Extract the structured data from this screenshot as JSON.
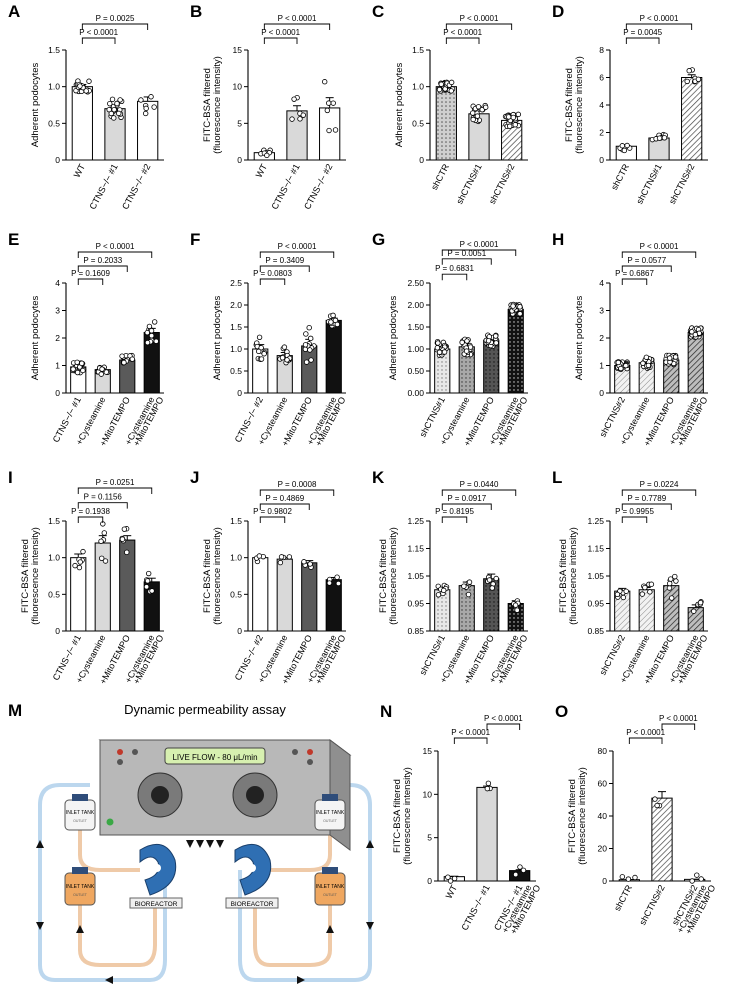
{
  "figure": {
    "panel_m": {
      "letter": "M",
      "title": "Dynamic permeability assay",
      "device_label": "LIVE FLOW - 80 μL/min",
      "tank_labels": [
        "INLET TANK",
        "INLET TANK",
        "INLET TANK",
        "INLET TANK"
      ],
      "tank_sublabels": [
        "OUTLET",
        "OUTLET",
        "OUTLET",
        "OUTLET"
      ],
      "bioreactor_labels": [
        "BIOREACTOR",
        "BIOREACTOR"
      ],
      "colors": {
        "device": "#b8b8b8",
        "device_dark": "#7a7a7a",
        "tube_outer": "#bcd7ee",
        "tube_inner": "#efcaa8",
        "bioreactor": "#2f6fb3",
        "screen": "#d7f0b0"
      }
    }
  },
  "chart_data": [
    {
      "letter": "A",
      "type": "bar",
      "ylabel": [
        "Adherent podocytes"
      ],
      "ylim": [
        0,
        1.5
      ],
      "yticks": [
        0,
        0.5,
        1.0,
        1.5
      ],
      "ytick_labels": [
        "0",
        "0.5",
        "1.0",
        "1.5"
      ],
      "categories": [
        "WT",
        "CTNS−/− #1",
        "CTNS−/− #2"
      ],
      "values": [
        1.0,
        0.7,
        0.8
      ],
      "errors": [
        0.03,
        0.05,
        0.06
      ],
      "patterns": [
        "white",
        "lightgray",
        "white"
      ],
      "n_points": [
        20,
        20,
        6
      ],
      "annotations": [
        {
          "text": "P < 0.0001",
          "from": 0,
          "to": 1,
          "y": 1.25
        },
        {
          "text": "P = 0.0025",
          "from": 0,
          "to": 2,
          "y": 1.42
        }
      ]
    },
    {
      "letter": "B",
      "type": "bar",
      "ylabel": [
        "FITC-BSA filtered",
        "(fluorescence intensity)"
      ],
      "ylim": [
        0,
        15
      ],
      "yticks": [
        0,
        5,
        10,
        15
      ],
      "ytick_labels": [
        "0",
        "5",
        "10",
        "15"
      ],
      "categories": [
        "WT",
        "CTNS−/− #1",
        "CTNS−/− #2"
      ],
      "values": [
        1.0,
        6.7,
        7.1
      ],
      "errors": [
        0.1,
        0.7,
        1.4
      ],
      "patterns": [
        "white",
        "lightgray",
        "white"
      ],
      "n_points": [
        8,
        6,
        6
      ],
      "annotations": [
        {
          "text": "P < 0.0001",
          "from": 0,
          "to": 1,
          "y": 11.5
        },
        {
          "text": "P < 0.0001",
          "from": 0,
          "to": 2,
          "y": 14.2
        }
      ]
    },
    {
      "letter": "C",
      "type": "bar",
      "ylabel": [
        "Adherent podocytes"
      ],
      "ylim": [
        0,
        1.5
      ],
      "yticks": [
        0,
        0.5,
        1.0,
        1.5
      ],
      "ytick_labels": [
        "0",
        "0.5",
        "1.0",
        "1.5"
      ],
      "categories": [
        "shCTR",
        "shCTNS#1",
        "shCTNS#2"
      ],
      "values": [
        1.0,
        0.63,
        0.54
      ],
      "errors": [
        0.02,
        0.04,
        0.03
      ],
      "patterns": [
        "dots",
        "lightgray",
        "hatch"
      ],
      "n_points": [
        30,
        20,
        25
      ],
      "annotations": [
        {
          "text": "P < 0.0001",
          "from": 0,
          "to": 1,
          "y": 1.25
        },
        {
          "text": "P < 0.0001",
          "from": 0,
          "to": 2,
          "y": 1.42
        }
      ]
    },
    {
      "letter": "D",
      "type": "bar",
      "ylabel": [
        "FITC-BSA filtered",
        "(fluorescence intensity)"
      ],
      "ylim": [
        0,
        8
      ],
      "yticks": [
        0,
        2,
        4,
        6,
        8
      ],
      "ytick_labels": [
        "0",
        "2",
        "4",
        "6",
        "8"
      ],
      "categories": [
        "shCTR",
        "shCTNS#1",
        "shCTNS#2"
      ],
      "values": [
        1.0,
        1.6,
        6.0
      ],
      "errors": [
        0.05,
        0.1,
        0.2
      ],
      "patterns": [
        "white",
        "lightgray",
        "hatch"
      ],
      "n_points": [
        8,
        10,
        7
      ],
      "annotations": [
        {
          "text": "P = 0.0045",
          "from": 0,
          "to": 1,
          "y": 6.9
        },
        {
          "text": "P < 0.0001",
          "from": 0,
          "to": 2,
          "y": 7.8
        }
      ]
    },
    {
      "letter": "E",
      "type": "bar",
      "ylabel": [
        "Adherent podocytes"
      ],
      "ylim": [
        0,
        4
      ],
      "yticks": [
        0,
        1,
        2,
        3,
        4
      ],
      "ytick_labels": [
        "0",
        "1",
        "2",
        "3",
        "4"
      ],
      "categories": [
        "CTNS−/− #1",
        "+Cysteamine",
        "+MitoTEMPO",
        "+Cysteamine +MitoTEMPO"
      ],
      "values": [
        0.95,
        0.85,
        1.2,
        2.2
      ],
      "errors": [
        0.08,
        0.07,
        0.06,
        0.15
      ],
      "patterns": [
        "white",
        "lightgray",
        "darkgray",
        "black"
      ],
      "n_points": [
        22,
        12,
        14,
        12
      ],
      "annotations": [
        {
          "text": "P = 0.1609",
          "from": 0,
          "to": 1,
          "y": 2.8
        },
        {
          "text": "P = 0.2033",
          "from": 0,
          "to": 2,
          "y": 3.4
        },
        {
          "text": "P < 0.0001",
          "from": 0,
          "to": 3,
          "y": 4.0
        }
      ]
    },
    {
      "letter": "F",
      "type": "bar",
      "ylabel": [
        "Adherent podocytes"
      ],
      "ylim": [
        0,
        2.5
      ],
      "yticks": [
        0,
        0.5,
        1.0,
        1.5,
        2.0,
        2.5
      ],
      "ytick_labels": [
        "0",
        "0.5",
        "1.0",
        "1.5",
        "2.0",
        "2.5"
      ],
      "categories": [
        "CTNS−/− #2",
        "+Cysteamine",
        "+MitoTEMPO",
        "+Cysteamine +MitoTEMPO"
      ],
      "values": [
        1.0,
        0.85,
        1.07,
        1.65
      ],
      "errors": [
        0.1,
        0.07,
        0.15,
        0.05
      ],
      "patterns": [
        "white",
        "lightgray",
        "darkgray",
        "black"
      ],
      "n_points": [
        12,
        12,
        12,
        14
      ],
      "annotations": [
        {
          "text": "P = 0.0803",
          "from": 0,
          "to": 1,
          "y": 1.8
        },
        {
          "text": "P = 0.3409",
          "from": 0,
          "to": 2,
          "y": 2.15
        },
        {
          "text": "P < 0.0001",
          "from": 0,
          "to": 3,
          "y": 2.5
        }
      ]
    },
    {
      "letter": "G",
      "type": "bar",
      "ylabel": [
        "Adherent podocytes"
      ],
      "ylim": [
        0,
        2.5
      ],
      "yticks": [
        0,
        0.5,
        1.0,
        1.5,
        2.0,
        2.5
      ],
      "ytick_labels": [
        "0.00",
        "0.50",
        "1.00",
        "1.50",
        "2.00",
        "2.50"
      ],
      "categories": [
        "shCTNS#1",
        "+Cysteamine",
        "+MitoTEMPO",
        "+Cysteamine +MitoTEMPO"
      ],
      "values": [
        1.0,
        1.05,
        1.2,
        1.9
      ],
      "errors": [
        0.06,
        0.07,
        0.05,
        0.04
      ],
      "patterns": [
        "lightdots",
        "graydots",
        "darkdots",
        "blackdots"
      ],
      "n_points": [
        25,
        20,
        22,
        40
      ],
      "annotations": [
        {
          "text": "P = 0.6831",
          "from": 0,
          "to": 1,
          "y": 2.7
        },
        {
          "text": "P = 0.0051",
          "from": 0,
          "to": 2,
          "y": 3.05
        },
        {
          "text": "P < 0.0001",
          "from": 0,
          "to": 3,
          "y": 3.4
        }
      ]
    },
    {
      "letter": "H",
      "type": "bar",
      "ylabel": [
        "Adherent podocytes"
      ],
      "ylim": [
        0,
        4
      ],
      "yticks": [
        0,
        1,
        2,
        3,
        4
      ],
      "ytick_labels": [
        "0",
        "1",
        "2",
        "3",
        "4"
      ],
      "categories": [
        "shCTNS#2",
        "+Cysteamine",
        "+MitoTEMPO",
        "+Cysteamine +MitoTEMPO"
      ],
      "values": [
        1.0,
        1.1,
        1.2,
        2.2
      ],
      "errors": [
        0.05,
        0.08,
        0.06,
        0.06
      ],
      "patterns": [
        "hatchlight",
        "hatchlight",
        "hatchdark",
        "hatchdark"
      ],
      "n_points": [
        22,
        20,
        22,
        40
      ],
      "annotations": [
        {
          "text": "P = 0.6867",
          "from": 0,
          "to": 1,
          "y": 2.9
        },
        {
          "text": "P = 0.0577",
          "from": 0,
          "to": 2,
          "y": 3.45
        },
        {
          "text": "P < 0.0001",
          "from": 0,
          "to": 3,
          "y": 4.0
        }
      ]
    },
    {
      "letter": "I",
      "type": "bar",
      "ylabel": [
        "FITC-BSA filtered",
        "(fluorescence intensity)"
      ],
      "ylim": [
        0,
        1.5
      ],
      "yticks": [
        0,
        0.5,
        1.0,
        1.5
      ],
      "ytick_labels": [
        "0",
        "0.5",
        "1.0",
        "1.5"
      ],
      "categories": [
        "CTNS−/− #1",
        "+Cysteamine",
        "+MitoTEMPO",
        "+Cysteamine +MitoTEMPO"
      ],
      "values": [
        1.0,
        1.2,
        1.24,
        0.67
      ],
      "errors": [
        0.05,
        0.1,
        0.06,
        0.05
      ],
      "patterns": [
        "white",
        "lightgray",
        "darkgray",
        "black"
      ],
      "n_points": [
        6,
        6,
        6,
        6
      ],
      "annotations": [
        {
          "text": "P = 0.1938",
          "from": 0,
          "to": 1,
          "y": 1.5
        },
        {
          "text": "P = 0.1156",
          "from": 0,
          "to": 2,
          "y": 1.75
        },
        {
          "text": "P = 0.0251",
          "from": 0,
          "to": 3,
          "y": 2.0
        }
      ]
    },
    {
      "letter": "J",
      "type": "bar",
      "ylabel": [
        "FITC-BSA filtered",
        "(fluorescence intensity)"
      ],
      "ylim": [
        0,
        1.5
      ],
      "yticks": [
        0,
        0.5,
        1.0,
        1.5
      ],
      "ytick_labels": [
        "0",
        "0.5",
        "1.0",
        "1.5"
      ],
      "categories": [
        "CTNS−/− #2",
        "+Cysteamine",
        "+MitoTEMPO",
        "+Cysteamine +MitoTEMPO"
      ],
      "values": [
        1.0,
        0.98,
        0.93,
        0.7
      ],
      "errors": [
        0.01,
        0.02,
        0.03,
        0.03
      ],
      "patterns": [
        "white",
        "lightgray",
        "darkgray",
        "black"
      ],
      "n_points": [
        4,
        4,
        4,
        4
      ],
      "annotations": [
        {
          "text": "P = 0.9802",
          "from": 0,
          "to": 1,
          "y": 1.25
        },
        {
          "text": "P = 0.4869",
          "from": 0,
          "to": 2,
          "y": 1.48
        },
        {
          "text": "P = 0.0008",
          "from": 0,
          "to": 3,
          "y": 1.7
        }
      ]
    },
    {
      "letter": "K",
      "type": "bar",
      "ylabel": [
        "FITC-BSA filtered",
        "(fluorescence intensity)"
      ],
      "ylim": [
        0.85,
        1.25
      ],
      "yticks": [
        0.85,
        0.95,
        1.05,
        1.15,
        1.25
      ],
      "ytick_labels": [
        "0.85",
        "0.95",
        "1.05",
        "1.15",
        "1.25"
      ],
      "categories": [
        "shCTNS#1",
        "+Cysteamine",
        "+MitoTEMPO",
        "+Cysteamine +MitoTEMPO"
      ],
      "values": [
        1.0,
        1.015,
        1.04,
        0.95
      ],
      "errors": [
        0.008,
        0.013,
        0.017,
        0.01
      ],
      "patterns": [
        "lightdots",
        "graydots",
        "darkdots",
        "blackdots"
      ],
      "n_points": [
        8,
        6,
        6,
        6
      ],
      "annotations": [
        {
          "text": "P = 0.8195",
          "from": 0,
          "to": 1,
          "y": 1.145
        },
        {
          "text": "P = 0.0917",
          "from": 0,
          "to": 2,
          "y": 1.175
        },
        {
          "text": "P = 0.0440",
          "from": 0,
          "to": 3,
          "y": 1.205
        }
      ]
    },
    {
      "letter": "L",
      "type": "bar",
      "ylabel": [
        "FITC-BSA filtered",
        "(fluorescence intensity)"
      ],
      "ylim": [
        0.85,
        1.25
      ],
      "yticks": [
        0.85,
        0.95,
        1.05,
        1.15,
        1.25
      ],
      "ytick_labels": [
        "0.85",
        "0.95",
        "1.05",
        "1.15",
        "1.25"
      ],
      "categories": [
        "shCTNS#2",
        "+Cysteamine",
        "+MitoTEMPO",
        "+Cysteamine +MitoTEMPO"
      ],
      "values": [
        0.995,
        1.0,
        1.015,
        0.935
      ],
      "errors": [
        0.01,
        0.008,
        0.02,
        0.01
      ],
      "patterns": [
        "hatchlight",
        "hatchlight",
        "hatchdark",
        "hatchdark"
      ],
      "n_points": [
        6,
        6,
        6,
        6
      ],
      "annotations": [
        {
          "text": "P = 0.9955",
          "from": 0,
          "to": 1,
          "y": 1.145
        },
        {
          "text": "P = 0.7789",
          "from": 0,
          "to": 2,
          "y": 1.175
        },
        {
          "text": "P = 0.0224",
          "from": 0,
          "to": 3,
          "y": 1.205
        }
      ]
    },
    {
      "letter": "N",
      "type": "bar",
      "ylabel": [
        "FITC-BSA filtered",
        "(fluorescence intensity)"
      ],
      "ylim": [
        0,
        15
      ],
      "yticks": [
        0,
        5,
        10,
        15
      ],
      "ytick_labels": [
        "0",
        "5",
        "10",
        "15"
      ],
      "categories": [
        "WT",
        "CTNS−/− #1",
        "CTNS−/− #1 +Cysteamine +MitoTEMPO"
      ],
      "values": [
        0.5,
        10.8,
        1.2
      ],
      "errors": [
        0.05,
        0.15,
        0.1
      ],
      "patterns": [
        "white",
        "lightgray",
        "black"
      ],
      "n_points": [
        3,
        3,
        3
      ],
      "annotations": [
        {
          "text": "P < 0.0001",
          "from": 0,
          "to": 1,
          "y": 13.2
        },
        {
          "text": "P < 0.0001",
          "from": 1,
          "to": 2,
          "y": 14.8
        }
      ]
    },
    {
      "letter": "O",
      "type": "bar",
      "ylabel": [
        "FITC-BSA filtered",
        "(fluorescence intensity)"
      ],
      "ylim": [
        0,
        80
      ],
      "yticks": [
        0,
        20,
        40,
        60,
        80
      ],
      "ytick_labels": [
        "0",
        "20",
        "40",
        "60",
        "80"
      ],
      "categories": [
        "shCTR",
        "shCTNS#2",
        "shCTNS#2 +Cysteamine +MitoTEMPO"
      ],
      "values": [
        0.8,
        51,
        1.0
      ],
      "errors": [
        0.1,
        4,
        0.1
      ],
      "patterns": [
        "white",
        "hatch",
        "white"
      ],
      "n_points": [
        3,
        3,
        3
      ],
      "annotations": [
        {
          "text": "P < 0.0001",
          "from": 0,
          "to": 1,
          "y": 68
        },
        {
          "text": "P < 0.0001",
          "from": 1,
          "to": 2,
          "y": 78
        }
      ]
    }
  ]
}
